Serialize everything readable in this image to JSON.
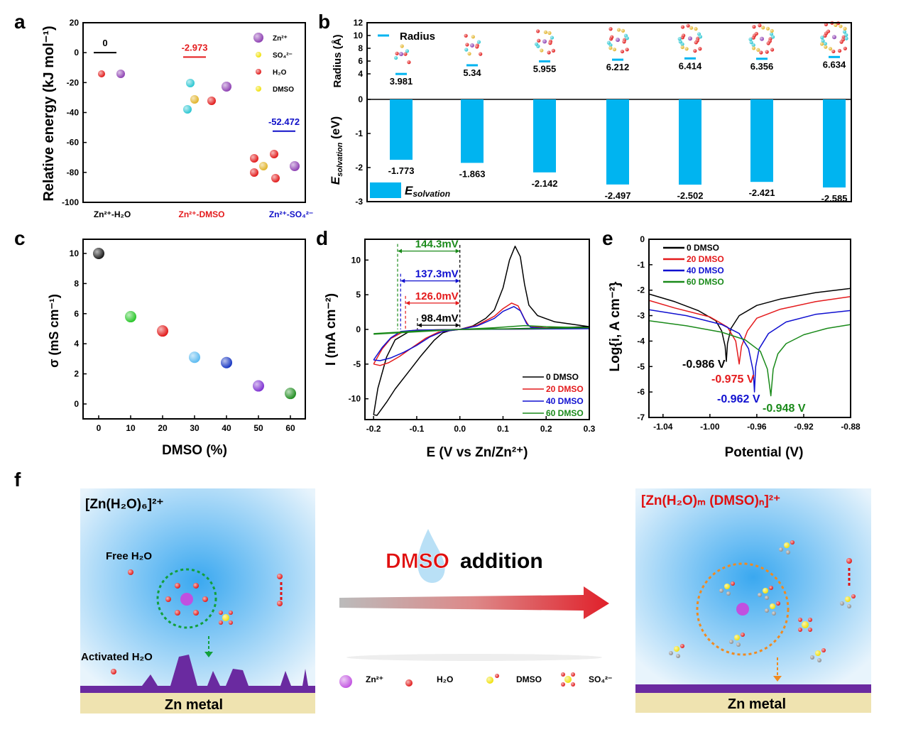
{
  "panel_labels": [
    "a",
    "b",
    "c",
    "d",
    "e",
    "f"
  ],
  "chart_data": [
    {
      "id": "a",
      "type": "line",
      "ylabel": "Relative energy (kJ mol⁻¹)",
      "ylim": [
        -100,
        20
      ],
      "yticks": [
        20,
        0,
        -20,
        -40,
        -60,
        -80,
        -100
      ],
      "categories": [
        "Zn²⁺-H₂O",
        "Zn²⁺-DMSO",
        "Zn²⁺-SO₄²⁻"
      ],
      "values": [
        0,
        -2.973,
        -52.472
      ],
      "value_labels": [
        "0",
        "-2.973",
        "-52.472"
      ],
      "colors": [
        "#000000",
        "#e41a1c",
        "#1010c8"
      ],
      "legend": [
        "Zn²⁺",
        "SO₄²⁻",
        "H₂O",
        "DMSO"
      ],
      "legend_placement": "top-right"
    },
    {
      "id": "b",
      "type": "bar",
      "top_ylabel": "Radius (Å)",
      "top_ylim": [
        0,
        12
      ],
      "top_yticks": [
        0,
        4,
        6,
        8,
        10,
        12
      ],
      "bottom_ylabel": "E",
      "bottom_ylabel_sub": "solvation",
      "bottom_ylabel_unit": "(eV)",
      "bottom_ylim": [
        -3,
        0
      ],
      "bottom_yticks": [
        0,
        -1,
        -2,
        -3
      ],
      "radius": [
        3.981,
        5.34,
        5.955,
        6.212,
        6.414,
        6.356,
        6.634
      ],
      "radius_labels": [
        "3.981",
        "5.34",
        "5.955",
        "6.212",
        "6.414",
        "6.356",
        "6.634"
      ],
      "esolvation": [
        -1.773,
        -1.863,
        -2.142,
        -2.497,
        -2.502,
        -2.421,
        -2.585
      ],
      "esolvation_labels": [
        "-1.773",
        "-1.863",
        "-2.142",
        "-2.497",
        "-2.502",
        "-2.421",
        "-2.585"
      ],
      "legend_radius": "Radius",
      "legend_e": "E",
      "legend_e_sub": "solvation",
      "color": "#00b4f0"
    },
    {
      "id": "c",
      "type": "scatter",
      "xlabel": "DMSO (%)",
      "ylabel": "σ (mS cm⁻¹)",
      "xlim": [
        -5,
        65
      ],
      "ylim": [
        -1,
        11
      ],
      "xticks": [
        0,
        10,
        20,
        30,
        40,
        50,
        60
      ],
      "yticks": [
        0,
        2,
        4,
        6,
        8,
        10
      ],
      "x": [
        0,
        10,
        20,
        30,
        40,
        50,
        60
      ],
      "y": [
        10.0,
        5.8,
        4.85,
        3.1,
        2.75,
        1.2,
        0.7
      ],
      "colors": [
        "#111111",
        "#22c422",
        "#e01010",
        "#55b8f0",
        "#1030c0",
        "#7a2ad0",
        "#1a8a1a"
      ]
    },
    {
      "id": "d",
      "type": "line",
      "xlabel": "E (V vs Zn/Zn²⁺)",
      "ylabel": "I (mA cm⁻²)",
      "xlim": [
        -0.22,
        0.3
      ],
      "ylim": [
        -13,
        13
      ],
      "xticks": [
        -0.2,
        -0.1,
        0.0,
        0.1,
        0.2,
        0.3
      ],
      "xtick_labels": [
        "-0.2",
        "-0.1",
        "0.0",
        "0.1",
        "0.2",
        "0.3"
      ],
      "yticks": [
        10,
        5,
        0,
        -5,
        -10
      ],
      "legend_placement": "bottom-right",
      "series": [
        {
          "name": "0   DMSO",
          "color": "#000000",
          "points": [
            [
              -0.2,
              -12.3
            ],
            [
              -0.192,
              -12.4
            ],
            [
              -0.17,
              -10.5
            ],
            [
              -0.15,
              -8.6
            ],
            [
              -0.12,
              -6.2
            ],
            [
              -0.09,
              -3.8
            ],
            [
              -0.06,
              -1.6
            ],
            [
              -0.04,
              -0.5
            ],
            [
              -0.02,
              -0.1
            ],
            [
              0,
              0
            ],
            [
              0.03,
              0.5
            ],
            [
              0.06,
              1.6
            ],
            [
              0.08,
              2.8
            ],
            [
              0.1,
              6
            ],
            [
              0.115,
              10
            ],
            [
              0.128,
              12
            ],
            [
              0.14,
              10.5
            ],
            [
              0.15,
              6.5
            ],
            [
              0.16,
              3.5
            ],
            [
              0.18,
              2
            ],
            [
              0.22,
              1.1
            ],
            [
              0.3,
              0.4
            ],
            [
              0.2,
              0.2
            ],
            [
              0.1,
              0.08
            ],
            [
              0,
              0
            ],
            [
              -0.08,
              -0.1
            ],
            [
              -0.12,
              -0.4
            ],
            [
              -0.15,
              -1.5
            ],
            [
              -0.17,
              -4
            ],
            [
              -0.19,
              -8.5
            ],
            [
              -0.2,
              -12.3
            ]
          ]
        },
        {
          "name": "20 DMSO",
          "color": "#e41a1c",
          "points": [
            [
              -0.2,
              -5
            ],
            [
              -0.185,
              -5.2
            ],
            [
              -0.165,
              -4.8
            ],
            [
              -0.14,
              -3.9
            ],
            [
              -0.11,
              -2.6
            ],
            [
              -0.08,
              -1.3
            ],
            [
              -0.05,
              -0.4
            ],
            [
              0,
              0
            ],
            [
              0.04,
              0.6
            ],
            [
              0.08,
              1.9
            ],
            [
              0.1,
              3
            ],
            [
              0.12,
              3.8
            ],
            [
              0.135,
              3.4
            ],
            [
              0.15,
              1.5
            ],
            [
              0.16,
              0.5
            ],
            [
              0.2,
              0.2
            ],
            [
              0.3,
              0.15
            ],
            [
              0.15,
              0.05
            ],
            [
              0,
              0
            ],
            [
              -0.1,
              -0.1
            ],
            [
              -0.13,
              -0.3
            ],
            [
              -0.16,
              -1.3
            ],
            [
              -0.18,
              -2.8
            ],
            [
              -0.2,
              -5
            ]
          ]
        },
        {
          "name": "40 DMSO",
          "color": "#1010d0",
          "points": [
            [
              -0.2,
              -4.4
            ],
            [
              -0.185,
              -4.5
            ],
            [
              -0.16,
              -4.1
            ],
            [
              -0.13,
              -3.3
            ],
            [
              -0.1,
              -2.3
            ],
            [
              -0.07,
              -1.1
            ],
            [
              -0.04,
              -0.3
            ],
            [
              0,
              0
            ],
            [
              0.04,
              0.5
            ],
            [
              0.08,
              1.6
            ],
            [
              0.1,
              2.6
            ],
            [
              0.125,
              3.3
            ],
            [
              0.14,
              2.7
            ],
            [
              0.155,
              0.8
            ],
            [
              0.165,
              0.3
            ],
            [
              0.2,
              0.15
            ],
            [
              0.3,
              0.1
            ],
            [
              0.15,
              0.05
            ],
            [
              0,
              0
            ],
            [
              -0.1,
              -0.1
            ],
            [
              -0.137,
              -0.3
            ],
            [
              -0.16,
              -1.2
            ],
            [
              -0.18,
              -2.6
            ],
            [
              -0.2,
              -4.4
            ]
          ]
        },
        {
          "name": "60 DMSO",
          "color": "#1a8a1a",
          "points": [
            [
              -0.2,
              -0.6
            ],
            [
              -0.1,
              -0.25
            ],
            [
              0,
              0
            ],
            [
              0.08,
              0.25
            ],
            [
              0.15,
              0.55
            ],
            [
              0.2,
              0.4
            ],
            [
              0.3,
              0.25
            ],
            [
              0.15,
              0.1
            ],
            [
              0,
              0
            ],
            [
              -0.1,
              -0.35
            ],
            [
              -0.2,
              -0.7
            ]
          ]
        }
      ],
      "annotations": [
        {
          "label": "144.3mV",
          "from": -0.1443,
          "to": 0.0,
          "color": "#1a8a1a",
          "y": 11.3
        },
        {
          "label": "137.3mV",
          "from": -0.1373,
          "to": 0.0,
          "color": "#1010d0",
          "y": 7.0
        },
        {
          "label": "126.0mV",
          "from": -0.126,
          "to": 0.0,
          "color": "#e41a1c",
          "y": 3.8
        },
        {
          "label": "98.4mV",
          "from": -0.0984,
          "to": 0.0,
          "color": "#000000",
          "y": 0.6
        }
      ]
    },
    {
      "id": "e",
      "type": "line",
      "xlabel": "Potential (V)",
      "ylabel": "Log{i, A cm⁻²}",
      "xlim": [
        -1.052,
        -0.88
      ],
      "ylim": [
        -7,
        0
      ],
      "xticks": [
        -1.04,
        -1.0,
        -0.96,
        -0.92,
        -0.88
      ],
      "xtick_labels": [
        "-1.04",
        "-1.00",
        "-0.96",
        "-0.92",
        "-0.88"
      ],
      "yticks": [
        0,
        -1,
        -2,
        -3,
        -4,
        -5,
        -6,
        -7
      ],
      "legend_placement": "top-left",
      "series": [
        {
          "name": "0   DMSO",
          "color": "#000000",
          "ecorr_label": "-0.986 V",
          "points": [
            [
              -1.052,
              -2.15
            ],
            [
              -1.03,
              -2.45
            ],
            [
              -1.01,
              -2.8
            ],
            [
              -0.995,
              -3.2
            ],
            [
              -0.99,
              -3.6
            ],
            [
              -0.987,
              -4.2
            ],
            [
              -0.986,
              -4.8
            ],
            [
              -0.985,
              -4.1
            ],
            [
              -0.982,
              -3.5
            ],
            [
              -0.975,
              -3.0
            ],
            [
              -0.96,
              -2.6
            ],
            [
              -0.94,
              -2.35
            ],
            [
              -0.91,
              -2.1
            ],
            [
              -0.88,
              -1.93
            ]
          ]
        },
        {
          "name": "20 DMSO",
          "color": "#e41a1c",
          "ecorr_label": "-0.975 V",
          "points": [
            [
              -1.052,
              -2.4
            ],
            [
              -1.03,
              -2.7
            ],
            [
              -1.0,
              -3.05
            ],
            [
              -0.985,
              -3.45
            ],
            [
              -0.978,
              -4.0
            ],
            [
              -0.975,
              -4.9
            ],
            [
              -0.973,
              -4.2
            ],
            [
              -0.968,
              -3.6
            ],
            [
              -0.96,
              -3.1
            ],
            [
              -0.94,
              -2.75
            ],
            [
              -0.91,
              -2.45
            ],
            [
              -0.88,
              -2.25
            ]
          ]
        },
        {
          "name": "40 DMSO",
          "color": "#1010d0",
          "ecorr_label": "-0.962 V",
          "points": [
            [
              -1.052,
              -2.77
            ],
            [
              -1.02,
              -3.0
            ],
            [
              -0.99,
              -3.35
            ],
            [
              -0.975,
              -3.7
            ],
            [
              -0.967,
              -4.3
            ],
            [
              -0.963,
              -5.2
            ],
            [
              -0.962,
              -6.0
            ],
            [
              -0.961,
              -5.0
            ],
            [
              -0.958,
              -4.3
            ],
            [
              -0.95,
              -3.7
            ],
            [
              -0.935,
              -3.25
            ],
            [
              -0.91,
              -2.95
            ],
            [
              -0.88,
              -2.8
            ]
          ]
        },
        {
          "name": "60 DMSO",
          "color": "#1a8a1a",
          "ecorr_label": "-0.948 V",
          "points": [
            [
              -1.052,
              -3.2
            ],
            [
              -1.02,
              -3.4
            ],
            [
              -0.99,
              -3.65
            ],
            [
              -0.97,
              -3.95
            ],
            [
              -0.957,
              -4.4
            ],
            [
              -0.951,
              -5.1
            ],
            [
              -0.948,
              -6.15
            ],
            [
              -0.946,
              -5.1
            ],
            [
              -0.942,
              -4.5
            ],
            [
              -0.935,
              -4.1
            ],
            [
              -0.92,
              -3.75
            ],
            [
              -0.9,
              -3.5
            ],
            [
              -0.88,
              -3.35
            ]
          ]
        }
      ]
    }
  ],
  "panel_f": {
    "left_title": "[Zn(H₂O)₆]²⁺",
    "free_h2o": "Free H₂O",
    "activated_h2o": "Activated H₂O",
    "left_substrate": "Zn metal",
    "arrow_text_dmso": "DMSO",
    "arrow_text_addition": "addition",
    "right_title_html": "[Zn(H₂O)ₘ (DMSO)ₙ]²⁺",
    "right_substrate": "Zn metal",
    "legend": [
      "Zn²⁺",
      "H₂O",
      "DMSO",
      "SO₄²⁻"
    ],
    "colors": {
      "zinc": "#c050e0",
      "oxygen": "#e01010",
      "sulfur": "#f0e000",
      "hydrogen": "#dddddd",
      "carbon": "#888888",
      "substrate": "#6a2aa0",
      "metal": "#efe3b0",
      "ring_green": "#12a03a",
      "ring_orange": "#f08a20",
      "title_red": "#e01010"
    }
  }
}
